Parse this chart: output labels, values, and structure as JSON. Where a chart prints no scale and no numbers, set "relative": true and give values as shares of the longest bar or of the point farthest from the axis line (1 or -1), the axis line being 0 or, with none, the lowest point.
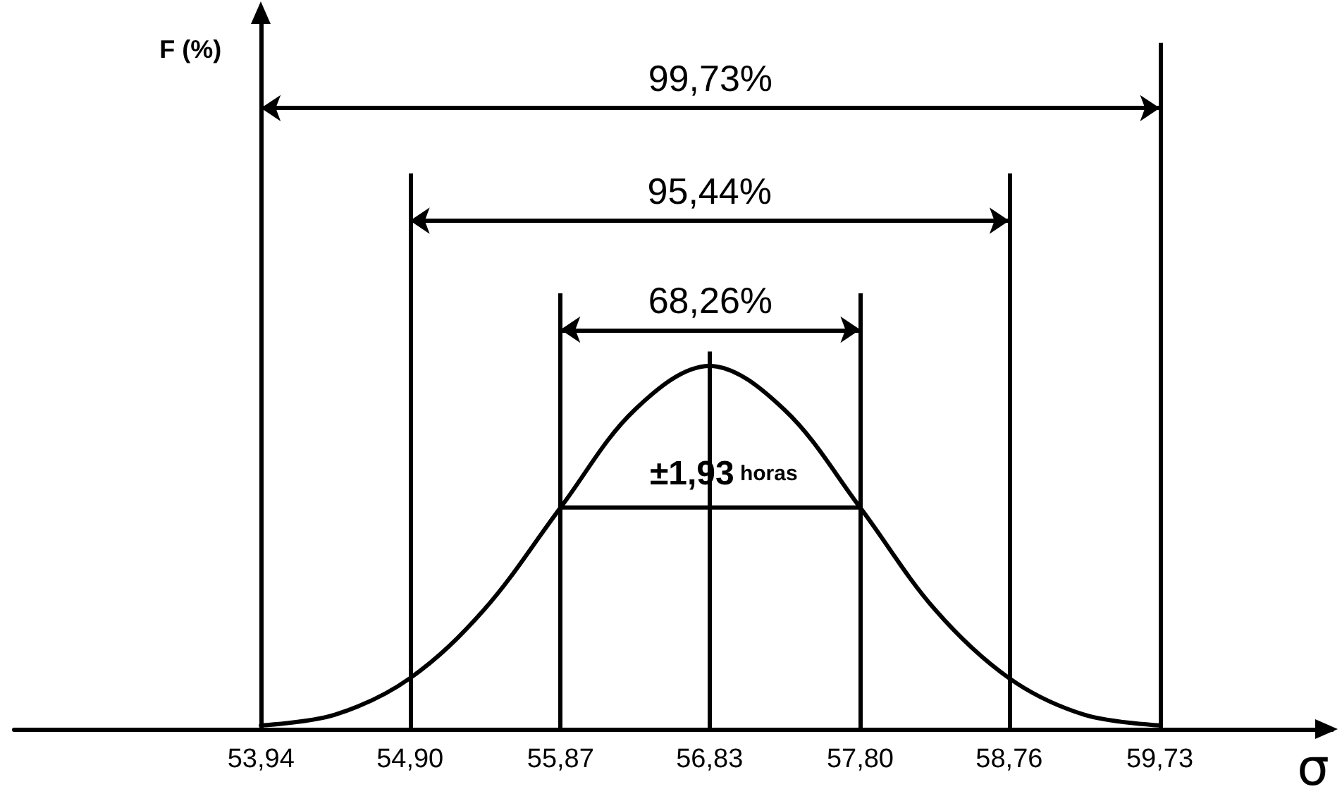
{
  "chart_data": {
    "type": "line",
    "relative": true,
    "xlabel": "σ",
    "color": "#000000",
    "series": [
      {
        "color": "#000000",
        "x": [
          53.94,
          54.42,
          54.9,
          55.38,
          55.87,
          56.35,
          56.83,
          57.31,
          57.8,
          58.28,
          58.76,
          59.24,
          59.73
        ],
        "values": [
          0.01,
          0.04,
          0.14,
          0.33,
          0.61,
          0.88,
          1,
          0.88,
          0.61,
          0.33,
          0.14,
          0.04,
          0.01
        ]
      },
      {
        "type": "line",
        "color": "#000000",
        "x": [
          55.87,
          57.8
        ],
        "values": [
          0.61,
          0.61
        ]
      }
    ],
    "xlim": [
      52.35,
      60.84
    ],
    "xticks": [
      {
        "value": 53.94,
        "label": "53,94"
      },
      {
        "value": 54.9,
        "label": "54,90"
      },
      {
        "value": 55.87,
        "label": "55,87"
      },
      {
        "value": 56.83,
        "label": "56,83"
      },
      {
        "value": 57.8,
        "label": "57,80"
      },
      {
        "value": 58.76,
        "label": "58,76"
      },
      {
        "value": 59.73,
        "label": "59,73"
      }
    ],
    "ref_lines": [
      {
        "axis": "x",
        "value": 53.94
      },
      {
        "axis": "x",
        "value": 54.9
      },
      {
        "axis": "x",
        "value": 55.87
      },
      {
        "axis": "x",
        "value": 56.83
      },
      {
        "axis": "x",
        "value": 57.8
      },
      {
        "axis": "x",
        "value": 58.76
      },
      {
        "axis": "x",
        "value": 59.73
      }
    ],
    "annotations": [
      "99,73%",
      "95,44%",
      "68,26%",
      {
        "text": "±1,93 horas",
        "x": 56.83,
        "y": 0.61
      },
      "F (%)"
    ],
    "grid": false,
    "marker": "none",
    "line_style": "solid"
  }
}
